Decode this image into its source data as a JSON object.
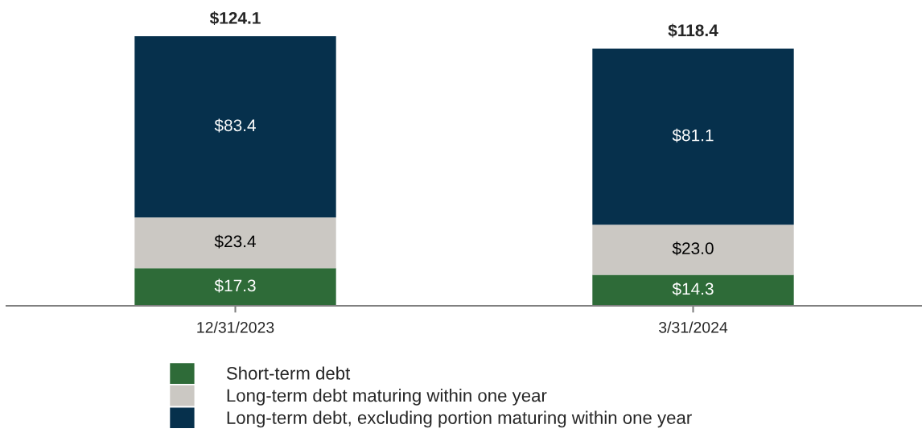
{
  "chart_data": {
    "type": "bar",
    "stacked": true,
    "categories": [
      "12/31/2023",
      "3/31/2024"
    ],
    "series": [
      {
        "name": "Short-term debt",
        "color": "#2e6b38",
        "values": [
          17.3,
          14.3
        ],
        "value_labels": [
          "$17.3",
          "$14.3"
        ]
      },
      {
        "name": "Long-term debt maturing within one year",
        "color": "#cbc8c3",
        "values": [
          23.4,
          23.0
        ],
        "value_labels": [
          "$23.4",
          "$23.0"
        ]
      },
      {
        "name": "Long-term debt, excluding portion maturing within one year",
        "color": "#06304c",
        "values": [
          83.4,
          81.1
        ],
        "value_labels": [
          "$83.4",
          "$81.1"
        ]
      }
    ],
    "totals": [
      "$124.1",
      "$118.4"
    ],
    "legend": "bottom",
    "grid": false,
    "tick_labels": "x"
  }
}
